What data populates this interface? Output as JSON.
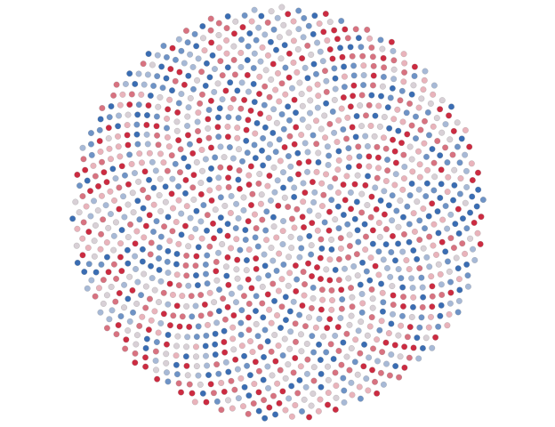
{
  "figure": {
    "kind": "phyllotaxis-spiral-dot-pattern",
    "dot_count": 1400,
    "golden_angle_deg": 137.508,
    "palette": [
      "#3a6db3",
      "#6e93c6",
      "#a7b9d6",
      "#d8d0d6",
      "#e9b3bb",
      "#d87280",
      "#cc2b41"
    ],
    "dot_stroke": "#8a8a8a",
    "background": "#ffffff"
  }
}
